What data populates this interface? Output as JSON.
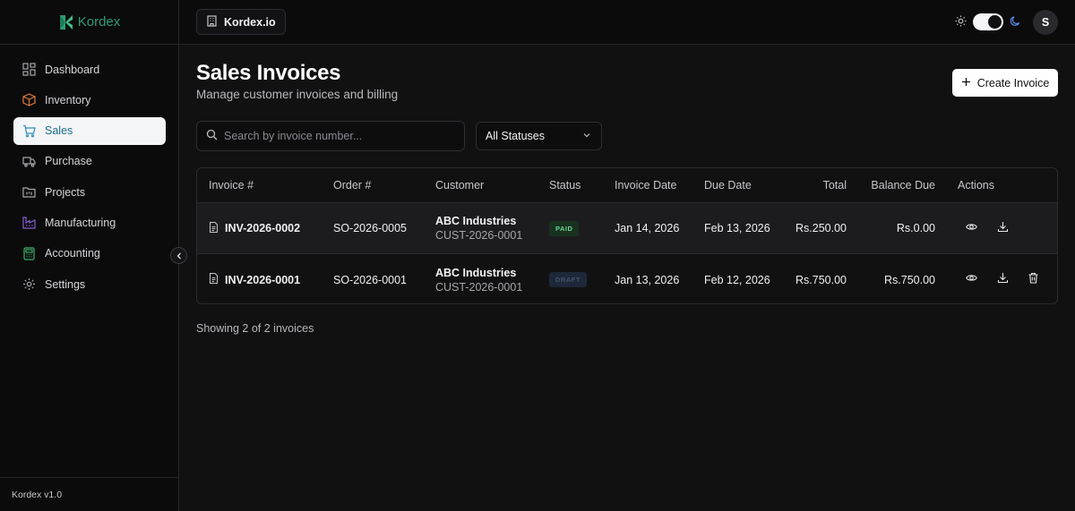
{
  "app": {
    "brand": "Kordex",
    "version": "Kordex v1.0",
    "brand_color": "#2f9e73"
  },
  "sidebar": {
    "items": [
      {
        "label": "Dashboard",
        "icon": "layout-grid-icon",
        "active": false
      },
      {
        "label": "Inventory",
        "icon": "box-icon",
        "active": false
      },
      {
        "label": "Sales",
        "icon": "shopping-cart-icon",
        "active": true
      },
      {
        "label": "Purchase",
        "icon": "truck-icon",
        "active": false
      },
      {
        "label": "Projects",
        "icon": "folder-kanban-icon",
        "active": false
      },
      {
        "label": "Manufacturing",
        "icon": "factory-icon",
        "active": false
      },
      {
        "label": "Accounting",
        "icon": "calculator-icon",
        "active": false
      },
      {
        "label": "Settings",
        "icon": "gear-icon",
        "active": false
      }
    ]
  },
  "topbar": {
    "org": "Kordex.io",
    "avatar_initial": "S",
    "theme": "dark"
  },
  "page": {
    "title": "Sales Invoices",
    "subtitle": "Manage customer invoices and billing",
    "create_label": "Create Invoice"
  },
  "filters": {
    "search_placeholder": "Search by invoice number...",
    "status_selected": "All Statuses"
  },
  "table": {
    "headers": {
      "invoice": "Invoice #",
      "order": "Order #",
      "customer": "Customer",
      "status": "Status",
      "invoice_date": "Invoice Date",
      "due_date": "Due Date",
      "total": "Total",
      "balance": "Balance Due",
      "actions": "Actions"
    },
    "rows": [
      {
        "invoice": "INV-2026-0002",
        "order": "SO-2026-0005",
        "customer_name": "ABC Industries",
        "customer_code": "CUST-2026-0001",
        "status": "PAID",
        "invoice_date": "Jan 14, 2026",
        "due_date": "Feb 13, 2026",
        "total": "Rs.250.00",
        "balance": "Rs.0.00"
      },
      {
        "invoice": "INV-2026-0001",
        "order": "SO-2026-0001",
        "customer_name": "ABC Industries",
        "customer_code": "CUST-2026-0001",
        "status": "DRAFT",
        "invoice_date": "Jan 13, 2026",
        "due_date": "Feb 12, 2026",
        "total": "Rs.750.00",
        "balance": "Rs.750.00"
      }
    ]
  },
  "footer": {
    "showing": "Showing 2 of 2 invoices"
  }
}
